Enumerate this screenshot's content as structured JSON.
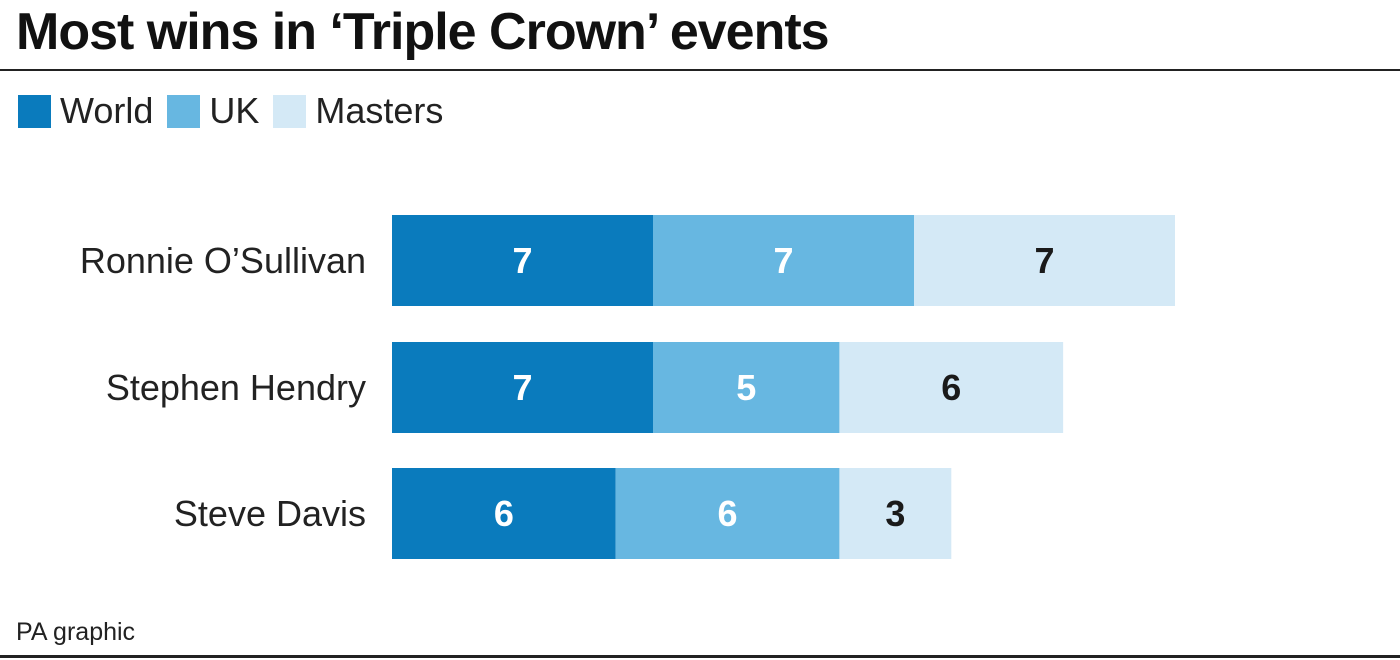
{
  "title": "Most wins in ‘Triple Crown’ events",
  "source": "PA graphic",
  "colors": {
    "World": "#0a7bbd",
    "UK": "#67b7e1",
    "Masters": "#d4e9f6",
    "label_dark": "#1a1a1a",
    "label_light": "#ffffff"
  },
  "chart_data": {
    "type": "bar",
    "orientation": "horizontal",
    "stacked": true,
    "legend_placement": "top-left",
    "grid": false,
    "categories": [
      "Ronnie O’Sullivan",
      "Stephen Hendry",
      "Steve Davis"
    ],
    "series": [
      {
        "name": "World",
        "values": [
          7,
          7,
          6
        ]
      },
      {
        "name": "UK",
        "values": [
          7,
          5,
          6
        ]
      },
      {
        "name": "Masters",
        "values": [
          7,
          6,
          3
        ]
      }
    ],
    "xlim": [
      0,
      21
    ]
  }
}
